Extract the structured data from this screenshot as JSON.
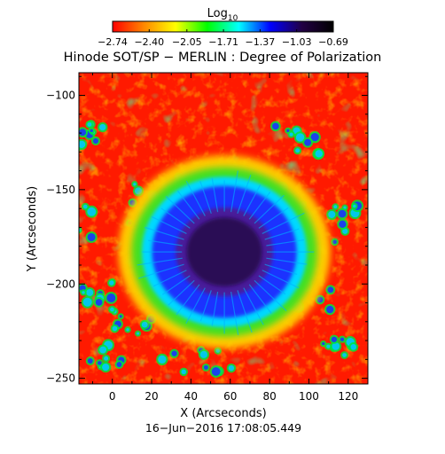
{
  "chart_data": {
    "type": "heatmap",
    "title": "Hinode SOT/SP − MERLIN : Degree of Polarization",
    "xlabel": "X (Arcseconds)",
    "ylabel": "Y (Arcseconds)",
    "timestamp": "16−Jun−2016 17:08:05.449",
    "xlim": [
      -17,
      130
    ],
    "ylim": [
      -253,
      -88
    ],
    "x_ticks": [
      0,
      20,
      40,
      60,
      80,
      100,
      120
    ],
    "x_tick_labels": [
      "0",
      "20",
      "40",
      "60",
      "80",
      "100",
      "120"
    ],
    "y_ticks": [
      -100,
      -150,
      -200,
      -250
    ],
    "y_tick_labels": [
      "−100",
      "−150",
      "−200",
      "−250"
    ],
    "colorbar": {
      "label": "Log",
      "label_subscript": "10",
      "range": [
        -2.74,
        -0.69
      ],
      "ticks": [
        -2.74,
        -2.4,
        -2.05,
        -1.71,
        -1.37,
        -1.03,
        -0.69
      ],
      "tick_labels": [
        "−2.74",
        "−2.40",
        "−2.05",
        "−1.71",
        "−1.37",
        "−1.03",
        "−0.69"
      ],
      "colors": [
        "#ff0000",
        "#ff8800",
        "#ffff00",
        "#00ff00",
        "#00ffff",
        "#0000ff",
        "#220044",
        "#000000"
      ]
    },
    "features": {
      "sunspot_center": [
        57,
        -183
      ],
      "umbra_radius": [
        24,
        22
      ],
      "penumbra_radius": [
        40,
        38
      ],
      "background_value_range": [
        -2.74,
        -2.2
      ],
      "umbra_value": -0.8
    }
  }
}
